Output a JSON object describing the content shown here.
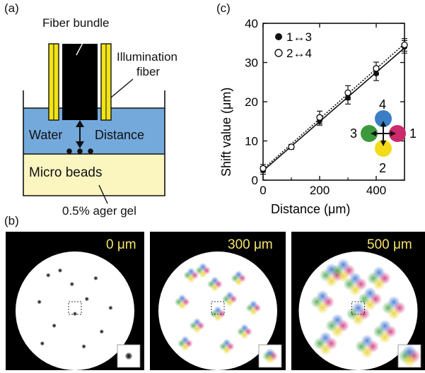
{
  "panel_labels": {
    "a": "(a)",
    "b": "(b)",
    "c": "(c)"
  },
  "diagram_a": {
    "fiber_bundle": "Fiber bundle",
    "illumination_fiber_line1": "Illumination",
    "illumination_fiber_line2": "fiber",
    "water": "Water",
    "distance": "Distance",
    "micro_beads": "Micro beads",
    "gel": "0.5% ager gel",
    "colors": {
      "water": "#74a9dc",
      "gel": "#fbf6c0",
      "fiber": "#f2e415",
      "bundle": "#000000"
    }
  },
  "panel_b": {
    "images": [
      {
        "label": "0 μm"
      },
      {
        "label": "300 μm"
      },
      {
        "label": "500 μm"
      }
    ],
    "label_color": "#f3e46a"
  },
  "chart_data": {
    "type": "line",
    "ylabel": "Shift value (μm)",
    "xlabel": "Distance (μm)",
    "xlim": [
      0,
      500
    ],
    "ylim": [
      0,
      40
    ],
    "x_ticks": [
      "0",
      "200",
      "400"
    ],
    "y_ticks": [
      "0",
      "10",
      "20",
      "30",
      "40"
    ],
    "x_tick_values": [
      0,
      200,
      400
    ],
    "y_tick_values": [
      0,
      10,
      20,
      30,
      40
    ],
    "x_minor_ticks": [
      100,
      300,
      500
    ],
    "series": [
      {
        "name": "1↔3",
        "marker": "filled",
        "line": "solid",
        "x": [
          0,
          100,
          200,
          300,
          400,
          500
        ],
        "y": [
          2.5,
          8.5,
          15.2,
          21.0,
          27.2,
          34.0
        ],
        "err": [
          1.0,
          0.6,
          1.2,
          1.6,
          1.8,
          1.6
        ]
      },
      {
        "name": "2↔4",
        "marker": "open",
        "line": "dotted",
        "x": [
          0,
          100,
          200,
          300,
          400,
          500
        ],
        "y": [
          3.0,
          8.5,
          16.0,
          22.3,
          28.5,
          34.5
        ],
        "err": [
          1.0,
          0.6,
          1.6,
          1.8,
          1.6,
          1.6
        ]
      }
    ],
    "legend_placement": "top-left",
    "inset_directions": {
      "labels": [
        "1",
        "2",
        "3",
        "4"
      ],
      "colors": {
        "1": "#cc2a6c",
        "2": "#f2dc1a",
        "3": "#3b9a3b",
        "4": "#3a7fc6"
      }
    }
  }
}
